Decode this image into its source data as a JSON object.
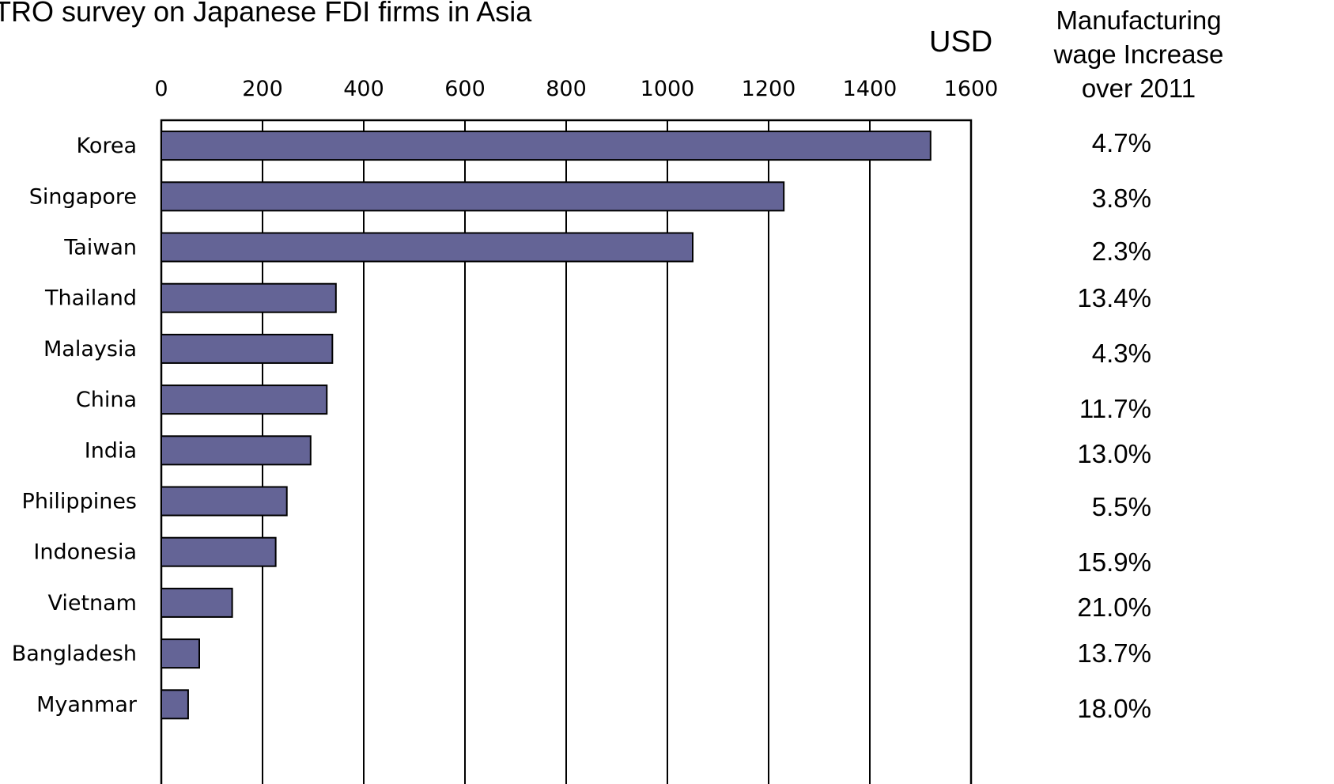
{
  "chart_data": {
    "type": "bar",
    "orientation": "horizontal",
    "title": "TRO survey on Japanese FDI firms in Asia",
    "unit_label": "USD",
    "side_column_header": "Manufacturing wage Increase over 2011",
    "categories": [
      "Korea",
      "Singapore",
      "Taiwan",
      "Thailand",
      "Malaysia",
      "China",
      "India",
      "Philippines",
      "Indonesia",
      "Vietnam",
      "Bangladesh",
      "Myanmar"
    ],
    "values": [
      1520,
      1230,
      1050,
      345,
      338,
      327,
      295,
      248,
      226,
      140,
      75,
      53
    ],
    "wage_increase": [
      "4.7%",
      "3.8%",
      "2.3%",
      "13.4%",
      "4.3%",
      "11.7%",
      "13.0%",
      "5.5%",
      "15.9%",
      "21.0%",
      "13.7%",
      "18.0%"
    ],
    "xlim": [
      0,
      1600
    ],
    "x_ticks": [
      "0",
      "200",
      "400",
      "600",
      "800",
      "1000",
      "1200",
      "1400",
      "1600"
    ],
    "grid": "vertical",
    "colors": {
      "bar": "#646496",
      "bar_edge": "#000000"
    }
  }
}
